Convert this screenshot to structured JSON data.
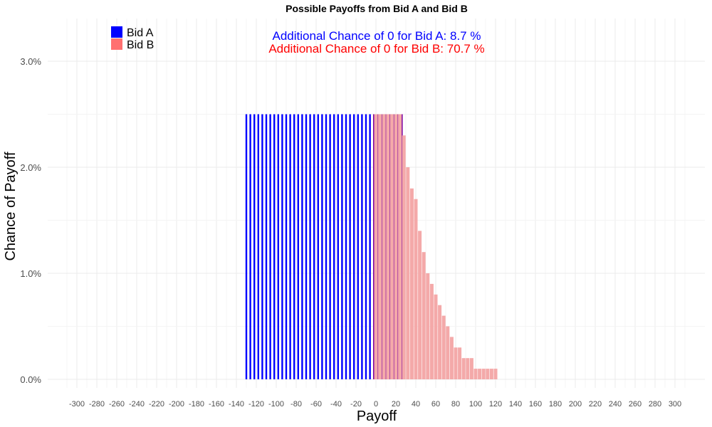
{
  "chart_data": {
    "type": "bar",
    "title": "Possible Payoffs from Bid A and Bid B",
    "xlabel": "Payoff",
    "ylabel": "Chance of Payoff",
    "xlim": [
      -310,
      310
    ],
    "ylim": [
      0,
      3.1
    ],
    "x_ticks": [
      -300,
      -280,
      -260,
      -240,
      -220,
      -200,
      -180,
      -160,
      -140,
      -120,
      -100,
      -80,
      -60,
      -40,
      -20,
      0,
      20,
      40,
      60,
      80,
      100,
      120,
      140,
      160,
      180,
      200,
      220,
      240,
      260,
      280,
      300
    ],
    "y_ticks": [
      0,
      1,
      2,
      3
    ],
    "y_tick_labels": [
      "0.0%",
      "1.0%",
      "2.0%",
      "3.0%"
    ],
    "grid": true,
    "legend": {
      "placement": "top-left",
      "entries": [
        {
          "label": "Bid A",
          "color": "#0000ff"
        },
        {
          "label": "Bid B",
          "color": "#ff7070"
        }
      ]
    },
    "annotations": [
      {
        "text": "Additional Chance of 0 for Bid A:  8.7 %",
        "color": "#0000ff"
      },
      {
        "text": "Additional Chance of 0 for Bid B:  70.7 %",
        "color": "#ff0000"
      }
    ],
    "series": [
      {
        "name": "Bid A",
        "color": "#0000ff",
        "x": [
          -130,
          -126,
          -122,
          -118,
          -114,
          -110,
          -106,
          -102,
          -98,
          -94,
          -90,
          -86,
          -82,
          -78,
          -74,
          -70,
          -66,
          -62,
          -58,
          -54,
          -50,
          -46,
          -42,
          -38,
          -34,
          -30,
          -26,
          -22,
          -18,
          -14,
          -10,
          -6,
          -2,
          2,
          6,
          10,
          14,
          18,
          22,
          26
        ],
        "values": [
          2.5,
          2.5,
          2.5,
          2.5,
          2.5,
          2.5,
          2.5,
          2.5,
          2.5,
          2.5,
          2.5,
          2.5,
          2.5,
          2.5,
          2.5,
          2.5,
          2.5,
          2.5,
          2.5,
          2.5,
          2.5,
          2.5,
          2.5,
          2.5,
          2.5,
          2.5,
          2.5,
          2.5,
          2.5,
          2.5,
          2.5,
          2.5,
          2.5,
          2.5,
          2.5,
          2.5,
          2.5,
          2.5,
          2.5,
          2.5
        ]
      },
      {
        "name": "Bid B",
        "color": "#ff7070",
        "x": [
          0,
          4,
          8,
          12,
          16,
          20,
          24,
          28,
          32,
          36,
          40,
          44,
          48,
          52,
          56,
          60,
          64,
          68,
          72,
          76,
          80,
          84,
          88,
          92,
          96,
          100,
          104,
          108,
          112,
          116,
          120
        ],
        "values": [
          2.5,
          2.5,
          2.5,
          2.5,
          2.5,
          2.5,
          2.5,
          2.3,
          2.0,
          1.8,
          1.7,
          1.4,
          1.2,
          1.0,
          0.9,
          0.8,
          0.7,
          0.6,
          0.5,
          0.4,
          0.3,
          0.3,
          0.2,
          0.2,
          0.2,
          0.1,
          0.1,
          0.1,
          0.1,
          0.1,
          0.1
        ]
      }
    ]
  }
}
